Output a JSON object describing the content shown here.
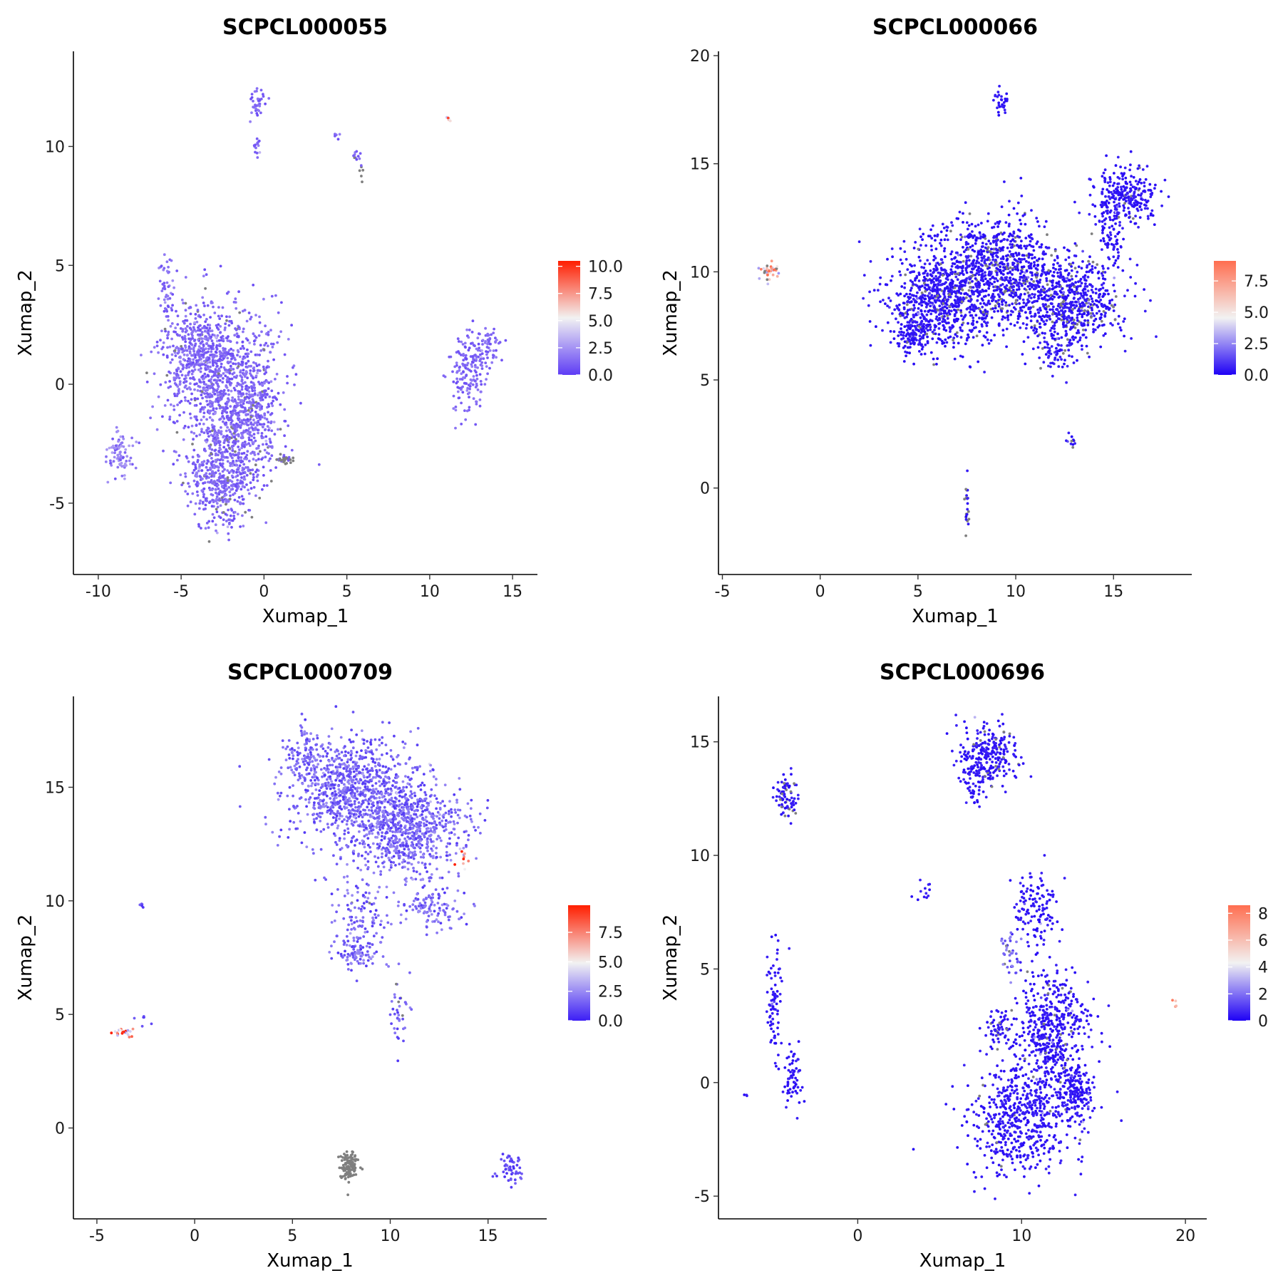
{
  "chart_data": [
    {
      "type": "scatter",
      "title": "SCPCL000055",
      "xlabel": "Xumap_1",
      "ylabel": "Xumap_2",
      "xlim": [
        -11.5,
        16.5
      ],
      "ylim": [
        -8,
        14
      ],
      "xticks": [
        -10,
        -5,
        0,
        5,
        10,
        15
      ],
      "xtick_labels": [
        "-10",
        "-5",
        "0",
        "5",
        "10",
        "15"
      ],
      "yticks": [
        -5,
        0,
        5,
        10
      ],
      "ytick_labels": [
        "-5",
        "0",
        "5",
        "10"
      ],
      "colorbar": {
        "min": 0,
        "max": 10.5,
        "ticks": [
          0,
          2.5,
          5,
          7.5,
          10
        ],
        "tick_labels": [
          "0.0",
          "2.5",
          "5.0",
          "7.5",
          "10.0"
        ],
        "low": "#5E3CF5",
        "mid": "#F2F2F2",
        "high": "#FF1E00"
      },
      "clusters": [
        {
          "x": -2.5,
          "y": 0.3,
          "sx": 1.7,
          "sy": 1.5,
          "n": 900,
          "val": 1.2,
          "na": 0.02
        },
        {
          "x": -2.5,
          "y": -3.8,
          "sx": 1.0,
          "sy": 1.1,
          "n": 550,
          "val": 1.2,
          "na": 0.05
        },
        {
          "x": -4.0,
          "y": 1.6,
          "sx": 1.0,
          "sy": 0.8,
          "n": 250,
          "val": 1.2,
          "na": 0.03
        },
        {
          "x": -0.8,
          "y": -1.6,
          "sx": 0.9,
          "sy": 1.2,
          "n": 300,
          "val": 1.2,
          "na": 0.05
        },
        {
          "x": -8.7,
          "y": -2.9,
          "sx": 0.4,
          "sy": 0.5,
          "n": 80,
          "val": 1.8,
          "na": 0.0
        },
        {
          "x": -5.9,
          "y": 4.0,
          "sx": 0.2,
          "sy": 0.8,
          "n": 45,
          "val": 1.5,
          "na": 0.0
        },
        {
          "x": 12.4,
          "y": 0.3,
          "sx": 0.5,
          "sy": 0.8,
          "n": 150,
          "val": 1.2,
          "na": 0.0
        },
        {
          "x": 13.3,
          "y": 1.7,
          "sx": 0.5,
          "sy": 0.4,
          "n": 70,
          "val": 1.2,
          "na": 0.0
        },
        {
          "x": -0.4,
          "y": 11.8,
          "sx": 0.25,
          "sy": 0.4,
          "n": 35,
          "val": 1.2,
          "na": 0.0
        },
        {
          "x": -0.4,
          "y": 10.0,
          "sx": 0.1,
          "sy": 0.35,
          "n": 14,
          "val": 1.2,
          "na": 0.0
        },
        {
          "x": 4.4,
          "y": 10.5,
          "sx": 0.1,
          "sy": 0.1,
          "n": 6,
          "val": 1.2,
          "na": 0.0
        },
        {
          "x": 5.6,
          "y": 9.6,
          "sx": 0.15,
          "sy": 0.15,
          "n": 10,
          "val": 1.2,
          "na": 0.3
        },
        {
          "x": 5.9,
          "y": 8.8,
          "sx": 0.05,
          "sy": 0.2,
          "n": 6,
          "val": 1.0,
          "na": 0.8
        },
        {
          "x": 11.2,
          "y": 11.1,
          "sx": 0.1,
          "sy": 0.1,
          "n": 5,
          "val": 6.5,
          "na": 0.0
        },
        {
          "x": 1.3,
          "y": -3.2,
          "sx": 0.35,
          "sy": 0.08,
          "n": 30,
          "val": 1.0,
          "na": 0.6
        }
      ]
    },
    {
      "type": "scatter",
      "title": "SCPCL000066",
      "xlabel": "Xumap_1",
      "ylabel": "Xumap_2",
      "xlim": [
        -5.2,
        19
      ],
      "ylim": [
        -4,
        20.2
      ],
      "xticks": [
        -5,
        0,
        5,
        10,
        15
      ],
      "xtick_labels": [
        "-5",
        "0",
        "5",
        "10",
        "15"
      ],
      "yticks": [
        0,
        5,
        10,
        15,
        20
      ],
      "ytick_labels": [
        "0",
        "5",
        "10",
        "15",
        "20"
      ],
      "colorbar": {
        "min": 0,
        "max": 9.1,
        "ticks": [
          0,
          2.5,
          5,
          7.5
        ],
        "tick_labels": [
          "0.0",
          "2.5",
          "5.0",
          "7.5"
        ],
        "low": "#1E00F5",
        "mid": "#F2F2F2",
        "high": "#FF6E50"
      },
      "clusters": [
        {
          "x": 6.2,
          "y": 8.8,
          "sx": 1.3,
          "sy": 1.2,
          "n": 700,
          "val": 0.4,
          "na": 0.04
        },
        {
          "x": 9.0,
          "y": 10.2,
          "sx": 1.5,
          "sy": 1.3,
          "n": 800,
          "val": 0.4,
          "na": 0.1
        },
        {
          "x": 12.6,
          "y": 8.6,
          "sx": 1.4,
          "sy": 1.0,
          "n": 700,
          "val": 0.4,
          "na": 0.15
        },
        {
          "x": 4.8,
          "y": 7.3,
          "sx": 0.5,
          "sy": 0.6,
          "n": 150,
          "val": 0.4,
          "na": 0.03
        },
        {
          "x": 15.6,
          "y": 13.4,
          "sx": 0.8,
          "sy": 0.7,
          "n": 280,
          "val": 0.4,
          "na": 0.02
        },
        {
          "x": 14.9,
          "y": 11.3,
          "sx": 0.4,
          "sy": 0.8,
          "n": 60,
          "val": 0.4,
          "na": 0.0
        },
        {
          "x": 12.0,
          "y": 6.2,
          "sx": 0.5,
          "sy": 0.5,
          "n": 60,
          "val": 0.5,
          "na": 0.05
        },
        {
          "x": -2.6,
          "y": 10.0,
          "sx": 0.25,
          "sy": 0.2,
          "n": 40,
          "val": 6.0,
          "na": 0.15
        },
        {
          "x": 9.3,
          "y": 17.9,
          "sx": 0.15,
          "sy": 0.3,
          "n": 30,
          "val": 0.4,
          "na": 0.0
        },
        {
          "x": 12.8,
          "y": 2.2,
          "sx": 0.15,
          "sy": 0.15,
          "n": 12,
          "val": 0.4,
          "na": 0.1
        },
        {
          "x": 7.5,
          "y": -1.0,
          "sx": 0.05,
          "sy": 0.8,
          "n": 22,
          "val": 0.4,
          "na": 0.3
        }
      ]
    },
    {
      "type": "scatter",
      "title": "SCPCL000709",
      "xlabel": "Xumap_1",
      "ylabel": "Xumap_2",
      "xlim": [
        -6.2,
        18
      ],
      "ylim": [
        -4,
        19
      ],
      "xticks": [
        -5,
        0,
        5,
        10,
        15
      ],
      "xtick_labels": [
        "-5",
        "0",
        "5",
        "10",
        "15"
      ],
      "yticks": [
        0,
        5,
        10,
        15
      ],
      "ytick_labels": [
        "0",
        "5",
        "10",
        "15"
      ],
      "colorbar": {
        "min": 0,
        "max": 9.8,
        "ticks": [
          0,
          2.5,
          5,
          7.5
        ],
        "tick_labels": [
          "0.0",
          "2.5",
          "5.0",
          "7.5"
        ],
        "low": "#3C1EF5",
        "mid": "#F2F2F2",
        "high": "#FF1E00"
      },
      "clusters": [
        {
          "x": 7.8,
          "y": 15.0,
          "sx": 1.5,
          "sy": 1.1,
          "n": 800,
          "val": 1.6,
          "na": 0.0
        },
        {
          "x": 10.8,
          "y": 13.3,
          "sx": 1.5,
          "sy": 1.0,
          "n": 800,
          "val": 1.6,
          "na": 0.0
        },
        {
          "x": 5.7,
          "y": 16.6,
          "sx": 0.5,
          "sy": 0.5,
          "n": 80,
          "val": 1.6,
          "na": 0.0
        },
        {
          "x": 8.5,
          "y": 9.5,
          "sx": 0.7,
          "sy": 1.0,
          "n": 120,
          "val": 1.6,
          "na": 0.02
        },
        {
          "x": 8.2,
          "y": 7.7,
          "sx": 0.6,
          "sy": 0.4,
          "n": 80,
          "val": 1.6,
          "na": 0.0
        },
        {
          "x": 12.0,
          "y": 9.8,
          "sx": 0.8,
          "sy": 0.5,
          "n": 120,
          "val": 1.6,
          "na": 0.0
        },
        {
          "x": 10.5,
          "y": 5.2,
          "sx": 0.3,
          "sy": 1.0,
          "n": 40,
          "val": 1.5,
          "na": 0.15
        },
        {
          "x": 13.8,
          "y": 11.9,
          "sx": 0.2,
          "sy": 0.25,
          "n": 10,
          "val": 6.5,
          "na": 0.0
        },
        {
          "x": -3.6,
          "y": 4.2,
          "sx": 0.3,
          "sy": 0.1,
          "n": 20,
          "val": 7.3,
          "na": 0.0
        },
        {
          "x": -2.8,
          "y": 4.7,
          "sx": 0.2,
          "sy": 0.2,
          "n": 6,
          "val": 1.0,
          "na": 0.0
        },
        {
          "x": -2.7,
          "y": 9.8,
          "sx": 0.05,
          "sy": 0.1,
          "n": 5,
          "val": 1.0,
          "na": 0.0
        },
        {
          "x": 7.9,
          "y": -1.7,
          "sx": 0.2,
          "sy": 0.35,
          "n": 120,
          "val": 1.0,
          "na": 1.0
        },
        {
          "x": 16.2,
          "y": -1.8,
          "sx": 0.35,
          "sy": 0.35,
          "n": 50,
          "val": 1.0,
          "na": 0.0
        }
      ]
    },
    {
      "type": "scatter",
      "title": "SCPCL000696",
      "xlabel": "Xumap_1",
      "ylabel": "Xumap_2",
      "xlim": [
        -8.5,
        21.3
      ],
      "ylim": [
        -6,
        17
      ],
      "xticks": [
        0,
        10,
        20
      ],
      "xtick_labels": [
        "0",
        "10",
        "20"
      ],
      "yticks": [
        -5,
        0,
        5,
        10,
        15
      ],
      "ytick_labels": [
        "-5",
        "0",
        "5",
        "10",
        "15"
      ],
      "colorbar": {
        "min": 0,
        "max": 8.6,
        "ticks": [
          0,
          2,
          4,
          6,
          8
        ],
        "tick_labels": [
          "0",
          "2",
          "4",
          "6",
          "8"
        ],
        "low": "#1E00F5",
        "mid": "#F2F2F2",
        "high": "#FF6E50"
      },
      "clusters": [
        {
          "x": 8.0,
          "y": 14.4,
          "sx": 0.9,
          "sy": 0.7,
          "n": 260,
          "val": 0.4,
          "na": 0.08
        },
        {
          "x": 7.0,
          "y": 13.0,
          "sx": 0.35,
          "sy": 0.4,
          "n": 40,
          "val": 0.4,
          "na": 0.0
        },
        {
          "x": -4.3,
          "y": 12.6,
          "sx": 0.35,
          "sy": 0.6,
          "n": 80,
          "val": 0.4,
          "na": 0.2
        },
        {
          "x": -5.0,
          "y": 3.5,
          "sx": 0.3,
          "sy": 1.3,
          "n": 80,
          "val": 0.4,
          "na": 0.0
        },
        {
          "x": -4.0,
          "y": 0.3,
          "sx": 0.3,
          "sy": 0.7,
          "n": 60,
          "val": 0.4,
          "na": 0.0
        },
        {
          "x": 10.8,
          "y": 7.6,
          "sx": 0.6,
          "sy": 0.8,
          "n": 120,
          "val": 0.4,
          "na": 0.0
        },
        {
          "x": 11.8,
          "y": 2.3,
          "sx": 1.1,
          "sy": 1.3,
          "n": 500,
          "val": 0.4,
          "na": 0.03
        },
        {
          "x": 10.0,
          "y": -1.5,
          "sx": 1.6,
          "sy": 1.3,
          "n": 600,
          "val": 0.4,
          "na": 0.03
        },
        {
          "x": 13.4,
          "y": -0.5,
          "sx": 0.6,
          "sy": 0.6,
          "n": 150,
          "val": 0.4,
          "na": 0.0
        },
        {
          "x": 8.7,
          "y": 2.3,
          "sx": 0.5,
          "sy": 0.4,
          "n": 60,
          "val": 0.4,
          "na": 0.05
        },
        {
          "x": 9.4,
          "y": 5.5,
          "sx": 0.3,
          "sy": 0.6,
          "n": 40,
          "val": 1.5,
          "na": 0.1
        },
        {
          "x": 4.0,
          "y": 8.3,
          "sx": 0.3,
          "sy": 0.35,
          "n": 12,
          "val": 0.4,
          "na": 0.0
        },
        {
          "x": 19.3,
          "y": 3.5,
          "sx": 0.1,
          "sy": 0.08,
          "n": 4,
          "val": 5.5,
          "na": 0.0
        },
        {
          "x": -6.8,
          "y": -0.6,
          "sx": 0.1,
          "sy": 0.1,
          "n": 3,
          "val": 0.4,
          "na": 0.0
        }
      ]
    }
  ]
}
